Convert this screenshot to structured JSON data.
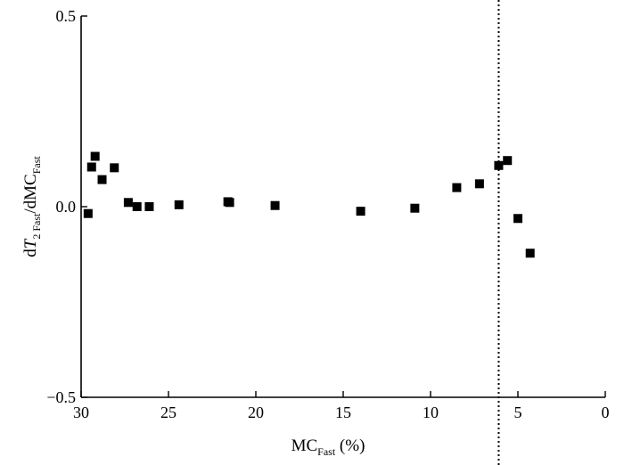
{
  "chart_data": {
    "type": "scatter",
    "title": "",
    "xlabel": {
      "main": "MC",
      "sub": "Fast",
      "tail": " (%)"
    },
    "ylabel": {
      "d1": "d",
      "italic": "T",
      "sub1": "2 Fast",
      "mid": "/dMC",
      "sub2": "Fast"
    },
    "xlim": [
      30,
      0
    ],
    "ylim": [
      -0.5,
      0.5
    ],
    "x_ticks": [
      30,
      25,
      20,
      15,
      10,
      5,
      0
    ],
    "x_tick_labels": [
      "30",
      "25",
      "20",
      "15",
      "10",
      "5",
      "0"
    ],
    "y_ticks": [
      0.5,
      0.0,
      -0.5
    ],
    "y_tick_labels": [
      "0.5",
      "0.0",
      "−0.5"
    ],
    "vertical_reference_line": {
      "x": 6.1,
      "style": "dotted"
    },
    "marker": "square",
    "marker_color": "#000000",
    "grid": false,
    "points": [
      {
        "x": 29.6,
        "y": -0.018
      },
      {
        "x": 29.4,
        "y": 0.104
      },
      {
        "x": 29.2,
        "y": 0.132
      },
      {
        "x": 28.8,
        "y": 0.071
      },
      {
        "x": 28.1,
        "y": 0.102
      },
      {
        "x": 27.3,
        "y": 0.011
      },
      {
        "x": 26.8,
        "y": 0.0
      },
      {
        "x": 26.1,
        "y": 0.0
      },
      {
        "x": 24.4,
        "y": 0.005
      },
      {
        "x": 21.6,
        "y": 0.013
      },
      {
        "x": 21.5,
        "y": 0.011
      },
      {
        "x": 18.9,
        "y": 0.003
      },
      {
        "x": 14.0,
        "y": -0.012
      },
      {
        "x": 10.9,
        "y": -0.004
      },
      {
        "x": 8.5,
        "y": 0.05
      },
      {
        "x": 7.2,
        "y": 0.06
      },
      {
        "x": 6.1,
        "y": 0.108
      },
      {
        "x": 5.6,
        "y": 0.121
      },
      {
        "x": 5.0,
        "y": -0.031
      },
      {
        "x": 4.3,
        "y": -0.122
      }
    ]
  }
}
